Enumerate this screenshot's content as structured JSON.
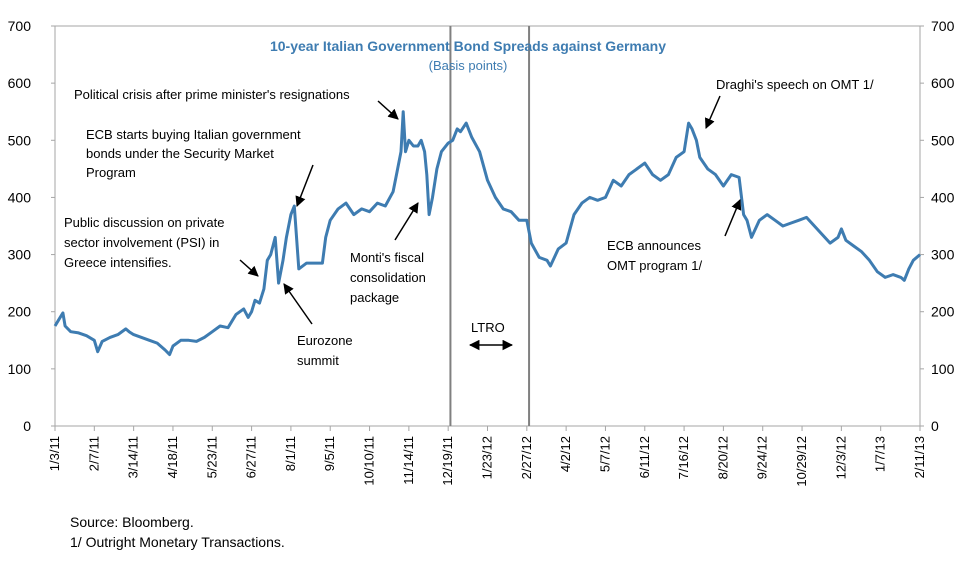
{
  "chart_data": {
    "type": "line",
    "title": "10-year Italian Government Bond Spreads against Germany",
    "subtitle": "(Basis points)",
    "ylim": [
      0,
      700
    ],
    "yticks": [
      0,
      100,
      200,
      300,
      400,
      500,
      600,
      700
    ],
    "xlim": [
      "2011-01-03",
      "2013-02-11"
    ],
    "xticks": [
      "1/3/11",
      "2/7/11",
      "3/14/11",
      "4/18/11",
      "5/23/11",
      "6/27/11",
      "8/1/11",
      "9/5/11",
      "10/10/11",
      "11/14/11",
      "12/19/11",
      "1/23/12",
      "2/27/12",
      "4/2/12",
      "5/7/12",
      "6/11/12",
      "7/16/12",
      "8/20/12",
      "9/24/12",
      "10/29/12",
      "12/3/12",
      "1/7/13",
      "2/11/13"
    ],
    "grid": false,
    "series": [
      {
        "color": "#3E7CB1",
        "points": [
          [
            "2011-01-03",
            175
          ],
          [
            "2011-01-06",
            185
          ],
          [
            "2011-01-10",
            198
          ],
          [
            "2011-01-12",
            175
          ],
          [
            "2011-01-17",
            165
          ],
          [
            "2011-01-24",
            163
          ],
          [
            "2011-01-31",
            158
          ],
          [
            "2011-02-07",
            150
          ],
          [
            "2011-02-10",
            130
          ],
          [
            "2011-02-14",
            148
          ],
          [
            "2011-02-21",
            155
          ],
          [
            "2011-02-28",
            160
          ],
          [
            "2011-03-07",
            170
          ],
          [
            "2011-03-10",
            165
          ],
          [
            "2011-03-14",
            160
          ],
          [
            "2011-03-21",
            155
          ],
          [
            "2011-03-28",
            150
          ],
          [
            "2011-04-04",
            145
          ],
          [
            "2011-04-11",
            133
          ],
          [
            "2011-04-15",
            125
          ],
          [
            "2011-04-18",
            140
          ],
          [
            "2011-04-25",
            150
          ],
          [
            "2011-05-02",
            150
          ],
          [
            "2011-05-09",
            148
          ],
          [
            "2011-05-16",
            155
          ],
          [
            "2011-05-23",
            165
          ],
          [
            "2011-05-30",
            175
          ],
          [
            "2011-06-06",
            172
          ],
          [
            "2011-06-13",
            195
          ],
          [
            "2011-06-20",
            205
          ],
          [
            "2011-06-24",
            190
          ],
          [
            "2011-06-27",
            200
          ],
          [
            "2011-06-30",
            220
          ],
          [
            "2011-07-04",
            215
          ],
          [
            "2011-07-08",
            240
          ],
          [
            "2011-07-11",
            290
          ],
          [
            "2011-07-14",
            300
          ],
          [
            "2011-07-18",
            330
          ],
          [
            "2011-07-21",
            250
          ],
          [
            "2011-07-25",
            290
          ],
          [
            "2011-07-28",
            330
          ],
          [
            "2011-08-01",
            370
          ],
          [
            "2011-08-04",
            385
          ],
          [
            "2011-08-08",
            275
          ],
          [
            "2011-08-15",
            285
          ],
          [
            "2011-08-22",
            285
          ],
          [
            "2011-08-29",
            285
          ],
          [
            "2011-09-01",
            330
          ],
          [
            "2011-09-05",
            360
          ],
          [
            "2011-09-12",
            380
          ],
          [
            "2011-09-19",
            390
          ],
          [
            "2011-09-26",
            370
          ],
          [
            "2011-10-03",
            380
          ],
          [
            "2011-10-10",
            375
          ],
          [
            "2011-10-17",
            390
          ],
          [
            "2011-10-24",
            385
          ],
          [
            "2011-10-31",
            410
          ],
          [
            "2011-11-03",
            440
          ],
          [
            "2011-11-07",
            480
          ],
          [
            "2011-11-09",
            550
          ],
          [
            "2011-11-11",
            480
          ],
          [
            "2011-11-14",
            500
          ],
          [
            "2011-11-18",
            490
          ],
          [
            "2011-11-22",
            490
          ],
          [
            "2011-11-25",
            500
          ],
          [
            "2011-11-28",
            480
          ],
          [
            "2011-11-30",
            440
          ],
          [
            "2011-12-02",
            370
          ],
          [
            "2011-12-05",
            400
          ],
          [
            "2011-12-09",
            450
          ],
          [
            "2011-12-13",
            480
          ],
          [
            "2011-12-19",
            495
          ],
          [
            "2011-12-23",
            500
          ],
          [
            "2011-12-27",
            520
          ],
          [
            "2011-12-30",
            515
          ],
          [
            "2012-01-04",
            530
          ],
          [
            "2012-01-09",
            505
          ],
          [
            "2012-01-16",
            480
          ],
          [
            "2012-01-23",
            430
          ],
          [
            "2012-01-30",
            400
          ],
          [
            "2012-02-06",
            380
          ],
          [
            "2012-02-13",
            375
          ],
          [
            "2012-02-20",
            360
          ],
          [
            "2012-02-27",
            360
          ],
          [
            "2012-03-02",
            320
          ],
          [
            "2012-03-09",
            295
          ],
          [
            "2012-03-16",
            290
          ],
          [
            "2012-03-19",
            280
          ],
          [
            "2012-03-26",
            310
          ],
          [
            "2012-04-02",
            320
          ],
          [
            "2012-04-09",
            370
          ],
          [
            "2012-04-16",
            390
          ],
          [
            "2012-04-23",
            400
          ],
          [
            "2012-04-30",
            395
          ],
          [
            "2012-05-07",
            400
          ],
          [
            "2012-05-14",
            430
          ],
          [
            "2012-05-21",
            420
          ],
          [
            "2012-05-28",
            440
          ],
          [
            "2012-06-04",
            450
          ],
          [
            "2012-06-11",
            460
          ],
          [
            "2012-06-18",
            440
          ],
          [
            "2012-06-25",
            430
          ],
          [
            "2012-07-02",
            440
          ],
          [
            "2012-07-09",
            470
          ],
          [
            "2012-07-16",
            480
          ],
          [
            "2012-07-20",
            530
          ],
          [
            "2012-07-23",
            520
          ],
          [
            "2012-07-27",
            500
          ],
          [
            "2012-07-30",
            470
          ],
          [
            "2012-08-06",
            450
          ],
          [
            "2012-08-13",
            440
          ],
          [
            "2012-08-20",
            420
          ],
          [
            "2012-08-27",
            440
          ],
          [
            "2012-09-03",
            435
          ],
          [
            "2012-09-07",
            370
          ],
          [
            "2012-09-10",
            360
          ],
          [
            "2012-09-14",
            330
          ],
          [
            "2012-09-21",
            360
          ],
          [
            "2012-09-28",
            370
          ],
          [
            "2012-10-05",
            360
          ],
          [
            "2012-10-12",
            350
          ],
          [
            "2012-10-19",
            355
          ],
          [
            "2012-10-26",
            360
          ],
          [
            "2012-11-02",
            365
          ],
          [
            "2012-11-09",
            350
          ],
          [
            "2012-11-16",
            335
          ],
          [
            "2012-11-23",
            320
          ],
          [
            "2012-11-30",
            330
          ],
          [
            "2012-12-03",
            345
          ],
          [
            "2012-12-07",
            325
          ],
          [
            "2012-12-14",
            315
          ],
          [
            "2012-12-21",
            305
          ],
          [
            "2012-12-28",
            290
          ],
          [
            "2013-01-04",
            270
          ],
          [
            "2013-01-11",
            260
          ],
          [
            "2013-01-18",
            265
          ],
          [
            "2013-01-25",
            260
          ],
          [
            "2013-01-28",
            255
          ],
          [
            "2013-02-01",
            275
          ],
          [
            "2013-02-05",
            290
          ],
          [
            "2013-02-11",
            300
          ]
        ]
      }
    ],
    "vlines": [
      "2011-12-21",
      "2012-02-29"
    ],
    "annotations": [
      {
        "text": "Political crisis after prime  minister's resignations",
        "at": "2011-11-09"
      },
      {
        "text": "ECB starts buying Italian government bonds under the Security Market Program",
        "at": "2011-08-05"
      },
      {
        "text": "Public discussion on  private sector involvement  (PSI) in Greece intensifies.",
        "at": "2011-07-11"
      },
      {
        "text": "Eurozone summit",
        "at": "2011-07-21"
      },
      {
        "text": "Monti's  fiscal consolidation package",
        "at": "2011-12-02"
      },
      {
        "text": "LTRO",
        "at": "2012-01-25"
      },
      {
        "text": "Draghi's speech on OMT 1/",
        "at": "2012-07-26"
      },
      {
        "text": "ECB announces OMT program 1/",
        "at": "2012-09-07"
      }
    ]
  },
  "notes": {
    "source": "Source: Bloomberg.",
    "footnote": "1/ Outright Monetary Transactions."
  }
}
